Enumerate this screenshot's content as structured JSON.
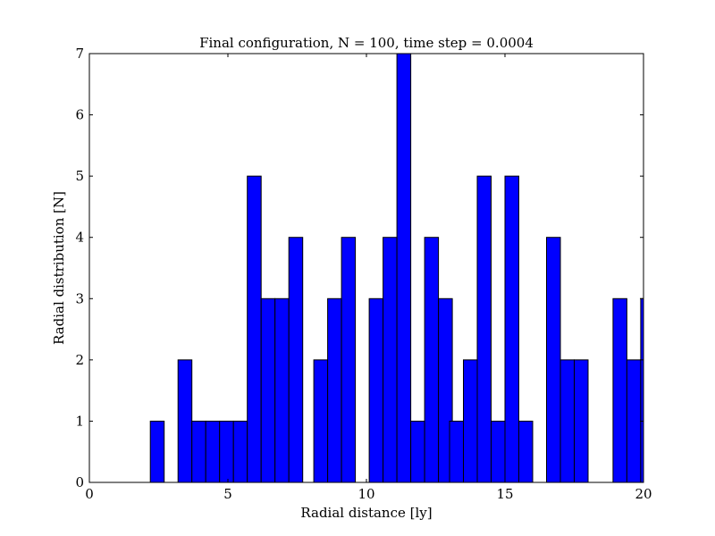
{
  "chart_data": {
    "type": "bar",
    "title": "Final configuration, N = 100, time step = 0.0004",
    "xlabel": "Radial distance [ly]",
    "ylabel": "Radial distribution [N]",
    "xlim": [
      0,
      20
    ],
    "ylim": [
      0,
      7
    ],
    "xticks": [
      "0",
      "5",
      "10",
      "15",
      "20"
    ],
    "yticks": [
      "0",
      "1",
      "2",
      "3",
      "4",
      "5",
      "6",
      "7"
    ],
    "bin_width": 0.5,
    "bins": [
      {
        "x": 2.2,
        "value": 1
      },
      {
        "x": 3.2,
        "value": 2
      },
      {
        "x": 3.7,
        "value": 1
      },
      {
        "x": 4.2,
        "value": 1
      },
      {
        "x": 4.7,
        "value": 1
      },
      {
        "x": 5.2,
        "value": 1
      },
      {
        "x": 5.7,
        "value": 5
      },
      {
        "x": 6.2,
        "value": 3
      },
      {
        "x": 6.7,
        "value": 3
      },
      {
        "x": 7.2,
        "value": 4
      },
      {
        "x": 8.1,
        "value": 2
      },
      {
        "x": 8.6,
        "value": 3
      },
      {
        "x": 9.1,
        "value": 4
      },
      {
        "x": 10.1,
        "value": 3
      },
      {
        "x": 10.6,
        "value": 4
      },
      {
        "x": 11.1,
        "value": 7
      },
      {
        "x": 11.6,
        "value": 1
      },
      {
        "x": 12.1,
        "value": 4
      },
      {
        "x": 12.6,
        "value": 3
      },
      {
        "x": 13.0,
        "value": 1
      },
      {
        "x": 13.5,
        "value": 2
      },
      {
        "x": 14.0,
        "value": 5
      },
      {
        "x": 14.5,
        "value": 1
      },
      {
        "x": 15.0,
        "value": 5
      },
      {
        "x": 15.5,
        "value": 1
      },
      {
        "x": 16.5,
        "value": 4
      },
      {
        "x": 17.0,
        "value": 2
      },
      {
        "x": 17.5,
        "value": 2
      },
      {
        "x": 18.9,
        "value": 3
      },
      {
        "x": 19.4,
        "value": 2
      },
      {
        "x": 19.9,
        "value": 3
      }
    ],
    "bar_color": "#0000ff",
    "edge_color": "#000000",
    "grid": false,
    "legend": "none"
  }
}
